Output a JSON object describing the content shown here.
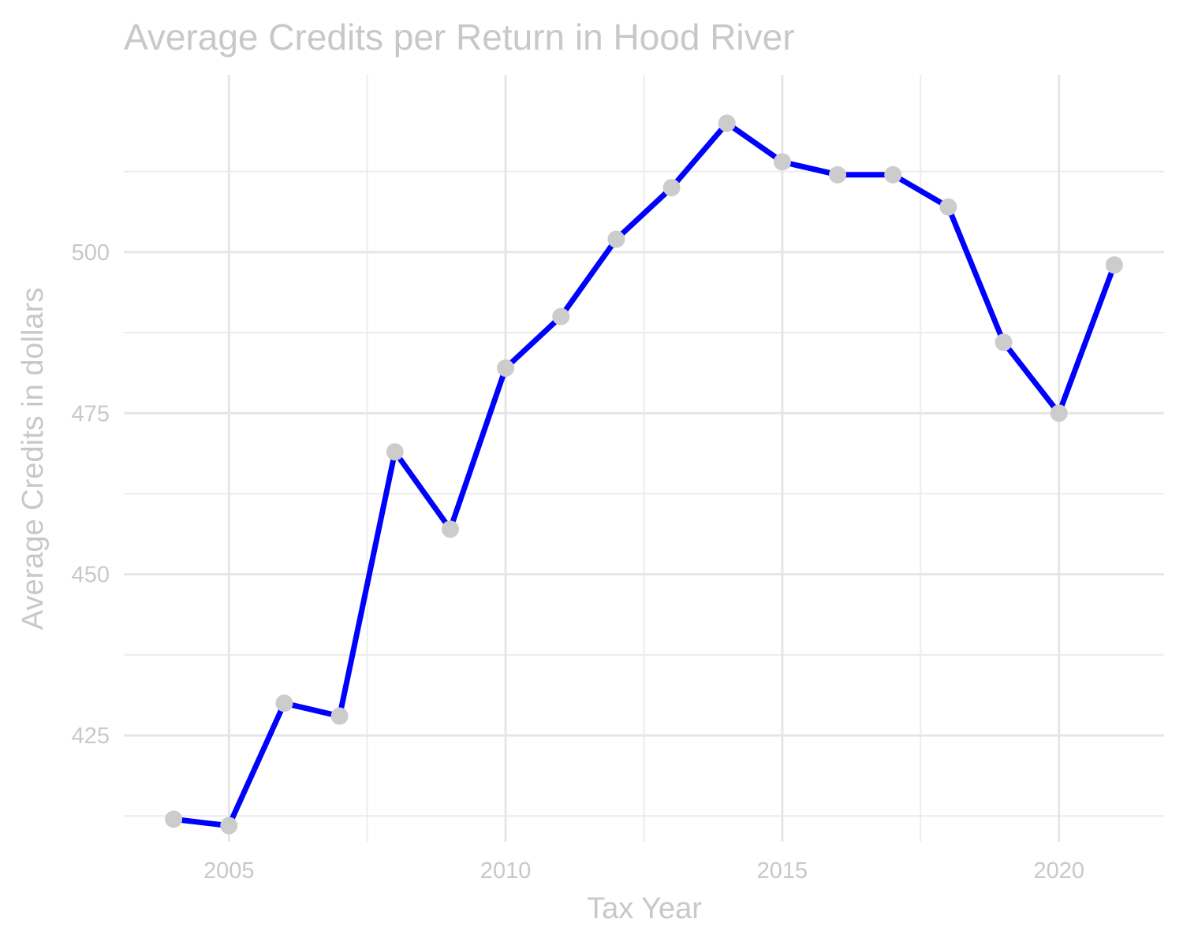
{
  "chart_data": {
    "type": "line",
    "title": "Average Credits per Return in Hood River",
    "xlabel": "Tax Year",
    "ylabel": "Average Credits in dollars",
    "x": [
      2004,
      2005,
      2006,
      2007,
      2008,
      2009,
      2010,
      2011,
      2012,
      2013,
      2014,
      2015,
      2016,
      2017,
      2018,
      2019,
      2020,
      2021
    ],
    "series": [
      {
        "values": [
          412,
          411,
          430,
          428,
          469,
          457,
          482,
          490,
          502,
          510,
          520,
          514,
          512,
          512,
          507,
          486,
          475,
          498
        ]
      }
    ],
    "x_ticks": [
      2005,
      2010,
      2015,
      2020
    ],
    "y_ticks": [
      425,
      450,
      475,
      500
    ],
    "xlim": [
      2003.1,
      2021.9
    ],
    "ylim": [
      408.5,
      527.5
    ],
    "grid": true,
    "line_color": "#0000ff",
    "marker_color": "#cccccc"
  }
}
